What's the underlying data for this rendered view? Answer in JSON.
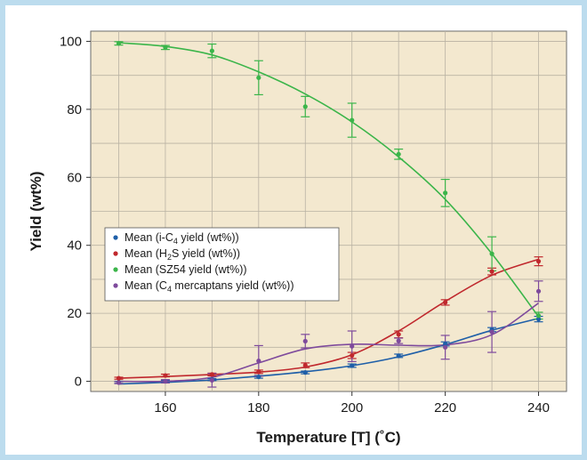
{
  "chart_data": {
    "type": "line",
    "title": "",
    "xlabel": "Temperature [T] (˚C)",
    "ylabel": "Yield (wt%)",
    "xlim": [
      144,
      246
    ],
    "ylim": [
      -3,
      103
    ],
    "xticks": [
      160,
      180,
      200,
      220,
      240
    ],
    "yticks": [
      0,
      20,
      40,
      60,
      80,
      100
    ],
    "grid": true,
    "legend_position": "center-left",
    "background_color": "#f3e8cf",
    "series": [
      {
        "name": "Mean (i-C4 yield (wt%))",
        "legend_parts": [
          [
            "Mean (i-C",
            ""
          ],
          [
            "4",
            "sub"
          ],
          [
            " yield (wt%))",
            ""
          ]
        ],
        "color": "#1f5fa8",
        "x": [
          150,
          160,
          170,
          180,
          190,
          200,
          210,
          220,
          230,
          240
        ],
        "y": [
          -0.3,
          0.0,
          0.5,
          1.3,
          2.6,
          4.6,
          7.5,
          11.0,
          15.2,
          18.3
        ],
        "err": [
          0.3,
          0.3,
          0.3,
          0.4,
          0.4,
          0.5,
          0.5,
          0.6,
          0.6,
          0.8
        ],
        "fit": [
          -0.8,
          -0.3,
          0.4,
          1.5,
          2.8,
          4.6,
          7.2,
          10.8,
          15.0,
          18.5
        ]
      },
      {
        "name": "Mean (H2S yield (wt%))",
        "legend_parts": [
          [
            "Mean (H",
            ""
          ],
          [
            "2",
            "sub"
          ],
          [
            "S yield (wt%))",
            ""
          ]
        ],
        "color": "#c0282d",
        "x": [
          150,
          160,
          170,
          180,
          190,
          200,
          210,
          220,
          230,
          240
        ],
        "y": [
          0.9,
          1.7,
          2.0,
          2.8,
          4.7,
          7.6,
          13.8,
          23.2,
          32.3,
          35.3
        ],
        "err": [
          0.3,
          0.4,
          0.4,
          0.5,
          0.7,
          0.9,
          1.0,
          0.8,
          1.0,
          1.3
        ],
        "fit": [
          0.9,
          1.4,
          2.0,
          2.7,
          4.2,
          7.8,
          14.8,
          23.5,
          31.2,
          35.9
        ]
      },
      {
        "name": "Mean (SZ54 yield (wt%))",
        "legend_parts": [
          [
            "Mean (SZ54 yield (wt%))",
            ""
          ]
        ],
        "color": "#3bb54a",
        "x": [
          150,
          160,
          170,
          180,
          190,
          200,
          210,
          220,
          230,
          240
        ],
        "y": [
          99.4,
          98.2,
          97.2,
          89.3,
          80.8,
          76.8,
          66.8,
          55.4,
          37.5,
          19.3
        ],
        "err": [
          0.5,
          0.6,
          2.0,
          5.0,
          3.0,
          5.0,
          1.5,
          4.0,
          5.0,
          1.0
        ],
        "fit": [
          99.6,
          98.5,
          96.0,
          91.0,
          84.5,
          76.3,
          66.0,
          53.5,
          37.5,
          19.0
        ]
      },
      {
        "name": "Mean (C4 mercaptans yield (wt%))",
        "legend_parts": [
          [
            "Mean (C",
            ""
          ],
          [
            "4",
            "sub"
          ],
          [
            " mercaptans yield (wt%))",
            ""
          ]
        ],
        "color": "#7e4a9c",
        "x": [
          150,
          160,
          170,
          180,
          190,
          200,
          210,
          220,
          230,
          240
        ],
        "y": [
          -0.4,
          0.0,
          0.3,
          6.0,
          11.8,
          10.3,
          11.9,
          10.0,
          14.5,
          26.5
        ],
        "err": [
          0.3,
          0.5,
          2.0,
          4.5,
          2.0,
          4.5,
          0.8,
          3.5,
          6.0,
          3.0
        ],
        "fit": [
          0.0,
          0.0,
          1.2,
          5.4,
          9.5,
          10.9,
          10.6,
          10.7,
          13.7,
          23.0
        ]
      }
    ]
  }
}
